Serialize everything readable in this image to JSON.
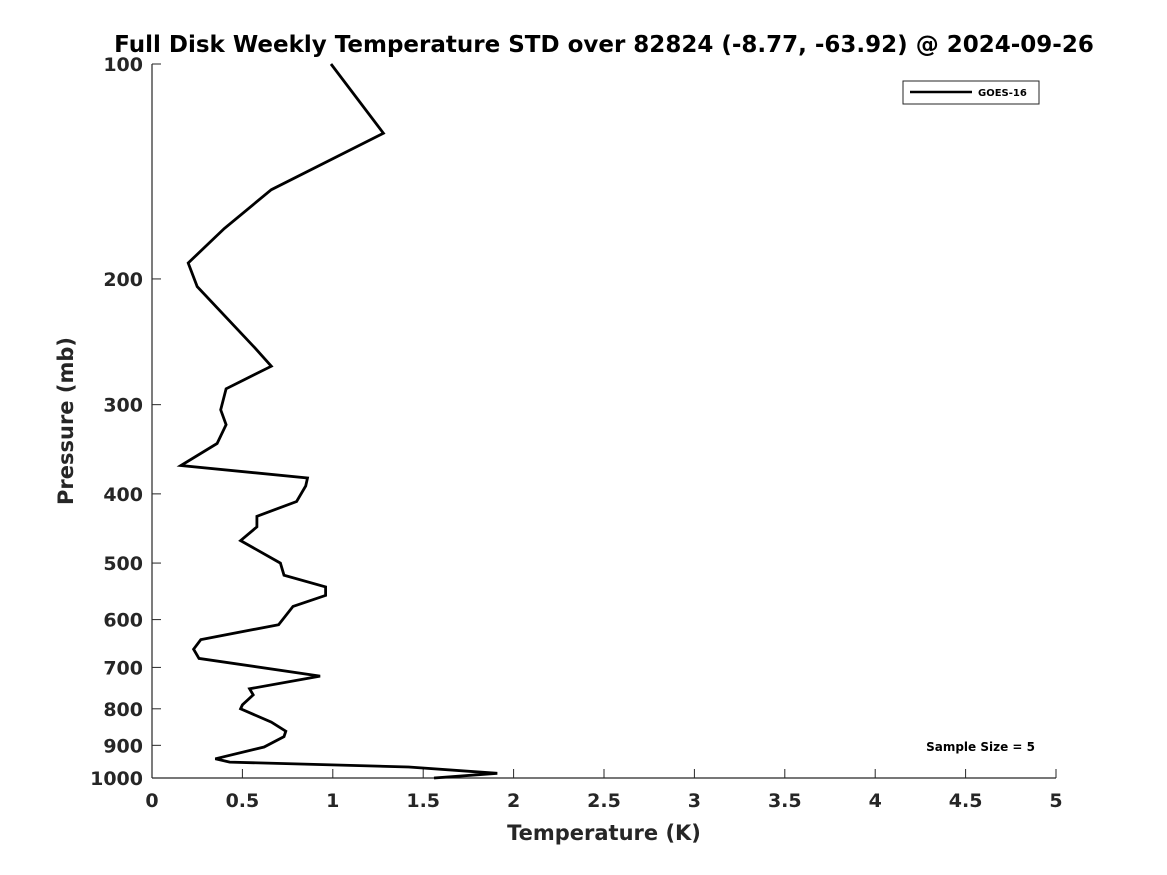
{
  "chart_data": {
    "type": "line",
    "title": "Full Disk Weekly Temperature STD over 82824 (-8.77, -63.92) @ 2024-09-26",
    "xlabel": "Temperature (K)",
    "ylabel": "Pressure (mb)",
    "xlim": [
      0,
      5
    ],
    "ylim": [
      1000,
      100
    ],
    "y_scale": "log",
    "y_reversed": true,
    "x_ticks": [
      "0",
      "0.5",
      "1",
      "1.5",
      "2",
      "2.5",
      "3",
      "3.5",
      "4",
      "4.5",
      "5"
    ],
    "y_ticks": [
      "100",
      "200",
      "300",
      "400",
      "500",
      "600",
      "700",
      "800",
      "900",
      "1000"
    ],
    "grid": false,
    "legend_position": "top-right",
    "annotation": "Sample Size = 5",
    "series": [
      {
        "name": "GOES-16",
        "color": "#000000",
        "x": [
          0.99,
          1.28,
          0.66,
          0.4,
          0.2,
          0.25,
          0.57,
          0.66,
          0.41,
          0.38,
          0.41,
          0.36,
          0.16,
          0.86,
          0.85,
          0.8,
          0.58,
          0.58,
          0.49,
          0.71,
          0.73,
          0.96,
          0.96,
          0.78,
          0.7,
          0.27,
          0.23,
          0.26,
          0.93,
          0.54,
          0.56,
          0.5,
          0.49,
          0.66,
          0.74,
          0.73,
          0.62,
          0.35,
          0.43,
          1.42,
          1.91,
          1.56
        ],
        "y": [
          100,
          125,
          150,
          170,
          190,
          205,
          250,
          265,
          285,
          305,
          320,
          340,
          365,
          380,
          390,
          410,
          430,
          445,
          465,
          500,
          520,
          540,
          555,
          575,
          610,
          640,
          660,
          680,
          720,
          750,
          765,
          790,
          800,
          835,
          860,
          875,
          905,
          940,
          950,
          965,
          985,
          1000
        ]
      }
    ]
  }
}
